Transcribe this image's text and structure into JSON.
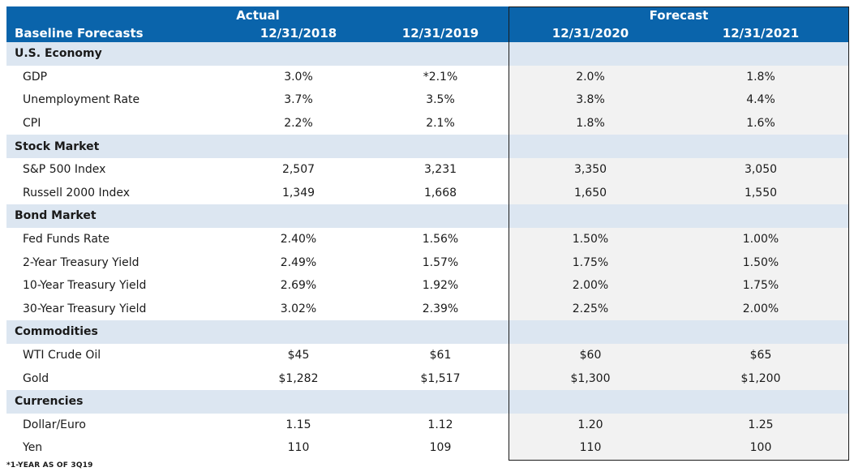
{
  "header": {
    "title": "Baseline Forecasts",
    "actual_label": "Actual",
    "forecast_label": "Forecast",
    "columns": [
      "12/31/2018",
      "12/31/2019",
      "12/31/2020",
      "12/31/2021"
    ]
  },
  "sections": [
    {
      "title": "U.S. Economy",
      "rows": [
        {
          "name": "GDP",
          "values": [
            "3.0%",
            "*2.1%",
            "2.0%",
            "1.8%"
          ]
        },
        {
          "name": "Unemployment Rate",
          "values": [
            "3.7%",
            "3.5%",
            "3.8%",
            "4.4%"
          ]
        },
        {
          "name": "CPI",
          "values": [
            "2.2%",
            "2.1%",
            "1.8%",
            "1.6%"
          ]
        }
      ]
    },
    {
      "title": "Stock Market",
      "rows": [
        {
          "name": "S&P 500 Index",
          "values": [
            "2,507",
            "3,231",
            "3,350",
            "3,050"
          ]
        },
        {
          "name": "Russell 2000 Index",
          "values": [
            "1,349",
            "1,668",
            "1,650",
            "1,550"
          ]
        }
      ]
    },
    {
      "title": "Bond Market",
      "rows": [
        {
          "name": "Fed Funds Rate",
          "values": [
            "2.40%",
            "1.56%",
            "1.50%",
            "1.00%"
          ]
        },
        {
          "name": "2-Year Treasury Yield",
          "values": [
            "2.49%",
            "1.57%",
            "1.75%",
            "1.50%"
          ]
        },
        {
          "name": "10-Year Treasury Yield",
          "values": [
            "2.69%",
            "1.92%",
            "2.00%",
            "1.75%"
          ]
        },
        {
          "name": "30-Year Treasury Yield",
          "values": [
            "3.02%",
            "2.39%",
            "2.25%",
            "2.00%"
          ]
        }
      ]
    },
    {
      "title": "Commodities",
      "rows": [
        {
          "name": "WTI Crude Oil",
          "values": [
            "$45",
            "$61",
            "$60",
            "$65"
          ]
        },
        {
          "name": "Gold",
          "values": [
            "$1,282",
            "$1,517",
            "$1,300",
            "$1,200"
          ]
        }
      ]
    },
    {
      "title": "Currencies",
      "rows": [
        {
          "name": "Dollar/Euro",
          "values": [
            "1.15",
            "1.12",
            "1.20",
            "1.25"
          ]
        },
        {
          "name": "Yen",
          "values": [
            "110",
            "109",
            "110",
            "100"
          ]
        }
      ]
    }
  ],
  "footnote": "*1-YEAR AS OF 3Q19",
  "colors": {
    "header_bg": "#0a64ab",
    "section_bg": "#dce6f1",
    "forecast_bg": "#f2f2f2"
  }
}
